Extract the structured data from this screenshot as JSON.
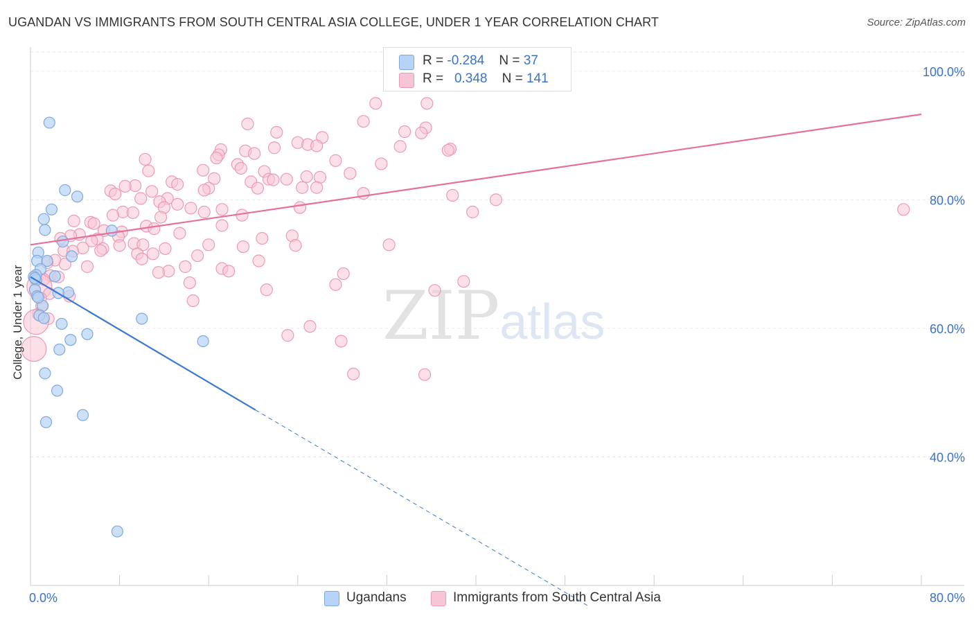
{
  "title": "UGANDAN VS IMMIGRANTS FROM SOUTH CENTRAL ASIA COLLEGE, UNDER 1 YEAR CORRELATION CHART",
  "source": "Source: ZipAtlas.com",
  "watermark": {
    "zip": "ZIP",
    "atlas": "atlas"
  },
  "colors": {
    "blue_fill": "#b7d3f5",
    "blue_stroke": "#7fa8de",
    "blue_line": "#3a78d0",
    "pink_fill": "#f7c6d6",
    "pink_stroke": "#eb9ab6",
    "pink_line": "#e5709a",
    "axis_text": "#3a72c9",
    "grid": "#e6e6e6"
  },
  "legend": {
    "blue": {
      "r_label": "R = ",
      "r_value": "-0.284",
      "n_label": "N = ",
      "n_value": "37"
    },
    "pink": {
      "r_label": "R = ",
      "r_value": "0.348",
      "n_label": "N = ",
      "n_value": "141"
    }
  },
  "chart_data": {
    "type": "scatter",
    "title": "UGANDAN VS IMMIGRANTS FROM SOUTH CENTRAL ASIA COLLEGE, UNDER 1 YEAR CORRELATION CHART",
    "xlabel": "",
    "ylabel": "College, Under 1 year",
    "xlim": [
      0,
      80
    ],
    "ylim": [
      20,
      103
    ],
    "x_tick_labels": [
      {
        "value": 0,
        "label": "0.0%"
      },
      {
        "value": 80,
        "label": "80.0%"
      }
    ],
    "y_tick_labels": [
      {
        "value": 40,
        "label": "40.0%"
      },
      {
        "value": 60,
        "label": "60.0%"
      },
      {
        "value": 80,
        "label": "80.0%"
      },
      {
        "value": 100,
        "label": "100.0%"
      }
    ],
    "grid": true,
    "series": [
      {
        "name": "Ugandans",
        "trend": {
          "x0": 0,
          "y0": 68.0,
          "x1": 20.2,
          "y1": 47.3,
          "dash_to_x": 50.0,
          "dash_to_y": 16.9
        },
        "points": [
          [
            1.7,
            92
          ],
          [
            3.1,
            81.5
          ],
          [
            4.2,
            80.5
          ],
          [
            1.9,
            78.5
          ],
          [
            1.2,
            77
          ],
          [
            1.3,
            75.3
          ],
          [
            7.3,
            75.2
          ],
          [
            2.9,
            73.5
          ],
          [
            0.7,
            71.8
          ],
          [
            3.7,
            71.2
          ],
          [
            0.6,
            70.5
          ],
          [
            1.5,
            70.5
          ],
          [
            0.9,
            69.2
          ],
          [
            0.5,
            68.3
          ],
          [
            2.2,
            68.1
          ],
          [
            0.3,
            68.0
          ],
          [
            0.5,
            67.5
          ],
          [
            0.4,
            66
          ],
          [
            3.4,
            65.6
          ],
          [
            2.5,
            65.5
          ],
          [
            0.6,
            65.0
          ],
          [
            1.1,
            63.5
          ],
          [
            0.8,
            62.0
          ],
          [
            1.2,
            61.6
          ],
          [
            10.0,
            61.5
          ],
          [
            2.8,
            60.7
          ],
          [
            5.1,
            59.1
          ],
          [
            3.6,
            58.2
          ],
          [
            15.5,
            58.0
          ],
          [
            2.6,
            56.7
          ],
          [
            1.3,
            53
          ],
          [
            2.4,
            50.3
          ],
          [
            4.7,
            46.5
          ],
          [
            1.4,
            45.4
          ],
          [
            7.8,
            28.4
          ],
          [
            0.4,
            67.8
          ],
          [
            0.7,
            64.8
          ]
        ]
      },
      {
        "name": "Immigrants from South Central Asia",
        "trend": {
          "x0": 0,
          "y0": 73.0,
          "x1": 80,
          "y1": 93.3
        },
        "points": [
          [
            31,
            95
          ],
          [
            35.6,
            95
          ],
          [
            29.9,
            92.2
          ],
          [
            19.5,
            91.8
          ],
          [
            35.5,
            91.2
          ],
          [
            33.6,
            90.6
          ],
          [
            22.1,
            90.5
          ],
          [
            35.1,
            90.4
          ],
          [
            26.2,
            89.7
          ],
          [
            24.0,
            88.9
          ],
          [
            24.9,
            88.6
          ],
          [
            25.7,
            88.4
          ],
          [
            33.2,
            88.3
          ],
          [
            21.9,
            88.1
          ],
          [
            37.7,
            87.9
          ],
          [
            37.5,
            87.7
          ],
          [
            17.1,
            87.8
          ],
          [
            19.3,
            87.6
          ],
          [
            20.1,
            87.2
          ],
          [
            16.9,
            87.0
          ],
          [
            16.7,
            86.5
          ],
          [
            10.3,
            86.3
          ],
          [
            27.4,
            86.1
          ],
          [
            31.5,
            85.6
          ],
          [
            18.6,
            85.5
          ],
          [
            18.9,
            84.9
          ],
          [
            15.5,
            84.6
          ],
          [
            10.6,
            84.5
          ],
          [
            21.0,
            84.4
          ],
          [
            28.7,
            84.1
          ],
          [
            24.8,
            83.6
          ],
          [
            26.0,
            83.5
          ],
          [
            16.5,
            83.3
          ],
          [
            23.0,
            83.2
          ],
          [
            21.4,
            83.2
          ],
          [
            21.8,
            83.1
          ],
          [
            19.8,
            82.8
          ],
          [
            12.7,
            82.8
          ],
          [
            13.2,
            82.4
          ],
          [
            9.4,
            82.2
          ],
          [
            8.5,
            82.1
          ],
          [
            24.4,
            81.9
          ],
          [
            25.7,
            81.9
          ],
          [
            20.4,
            81.8
          ],
          [
            7.2,
            81.4
          ],
          [
            16.0,
            81.8
          ],
          [
            15.6,
            81.5
          ],
          [
            10.9,
            81.3
          ],
          [
            7.6,
            80.9
          ],
          [
            29.9,
            81.0
          ],
          [
            12.3,
            80.2
          ],
          [
            9.9,
            80.2
          ],
          [
            11.6,
            79.7
          ],
          [
            13.2,
            79.3
          ],
          [
            37.9,
            80.7
          ],
          [
            41.8,
            80.0
          ],
          [
            24.2,
            78.8
          ],
          [
            14.4,
            78.7
          ],
          [
            12.0,
            78.8
          ],
          [
            17.2,
            78.5
          ],
          [
            8.3,
            78.1
          ],
          [
            15.6,
            78.1
          ],
          [
            9.2,
            78.0
          ],
          [
            39.7,
            78.1
          ],
          [
            78.4,
            78.5
          ],
          [
            7.4,
            77.6
          ],
          [
            11.7,
            77.3
          ],
          [
            19.0,
            77.6
          ],
          [
            3.9,
            76.7
          ],
          [
            5.4,
            76.5
          ],
          [
            5.7,
            76.3
          ],
          [
            17.2,
            76.0
          ],
          [
            10.4,
            75.9
          ],
          [
            11.1,
            75.5
          ],
          [
            6.6,
            75.2
          ],
          [
            8.2,
            75.0
          ],
          [
            13.4,
            74.8
          ],
          [
            4.4,
            74.6
          ],
          [
            3.6,
            74.4
          ],
          [
            7.9,
            74.3
          ],
          [
            2.7,
            74.0
          ],
          [
            6.0,
            73.9
          ],
          [
            20.8,
            74.0
          ],
          [
            23.5,
            74.4
          ],
          [
            5.5,
            73.6
          ],
          [
            9.3,
            73.2
          ],
          [
            10.1,
            73.0
          ],
          [
            8.0,
            72.9
          ],
          [
            16.0,
            73.0
          ],
          [
            19.1,
            72.7
          ],
          [
            23.8,
            72.9
          ],
          [
            32.2,
            73.0
          ],
          [
            4.7,
            72.5
          ],
          [
            6.5,
            72.4
          ],
          [
            3.0,
            72.1
          ],
          [
            3.8,
            72.0
          ],
          [
            6.3,
            72.1
          ],
          [
            9.6,
            71.6
          ],
          [
            11.0,
            71.6
          ],
          [
            15.0,
            71.3
          ],
          [
            10.0,
            70.8
          ],
          [
            20.5,
            70.5
          ],
          [
            2.2,
            70.6
          ],
          [
            1.5,
            70.2
          ],
          [
            3.1,
            70.0
          ],
          [
            5.1,
            69.6
          ],
          [
            13.9,
            69.6
          ],
          [
            17.2,
            69.3
          ],
          [
            17.8,
            68.9
          ],
          [
            12.4,
            68.9
          ],
          [
            11.5,
            68.7
          ],
          [
            28.1,
            68.5
          ],
          [
            1.8,
            68.2
          ],
          [
            2.5,
            68.0
          ],
          [
            0.6,
            67.8
          ],
          [
            1.2,
            67.6
          ],
          [
            14.3,
            67.1
          ],
          [
            27.4,
            66.8
          ],
          [
            38.9,
            67.3
          ],
          [
            0.8,
            66.5
          ],
          [
            21.2,
            66.0
          ],
          [
            36.3,
            65.9
          ],
          [
            1.7,
            65.4
          ],
          [
            3.5,
            65.0
          ],
          [
            0.9,
            64.7
          ],
          [
            14.6,
            64.3
          ],
          [
            1.0,
            63.5
          ],
          [
            0.7,
            62.2
          ],
          [
            1.6,
            61.5
          ],
          [
            0.5,
            61.0
          ],
          [
            25.1,
            60.3
          ],
          [
            23.1,
            58.9
          ],
          [
            27.9,
            58.0
          ],
          [
            0.3,
            56.8
          ],
          [
            29.0,
            52.9
          ],
          [
            35.4,
            52.8
          ],
          [
            12.1,
            72.4
          ]
        ]
      }
    ]
  },
  "bottom_legend": [
    "Ugandans",
    "Immigrants from South Central Asia"
  ]
}
